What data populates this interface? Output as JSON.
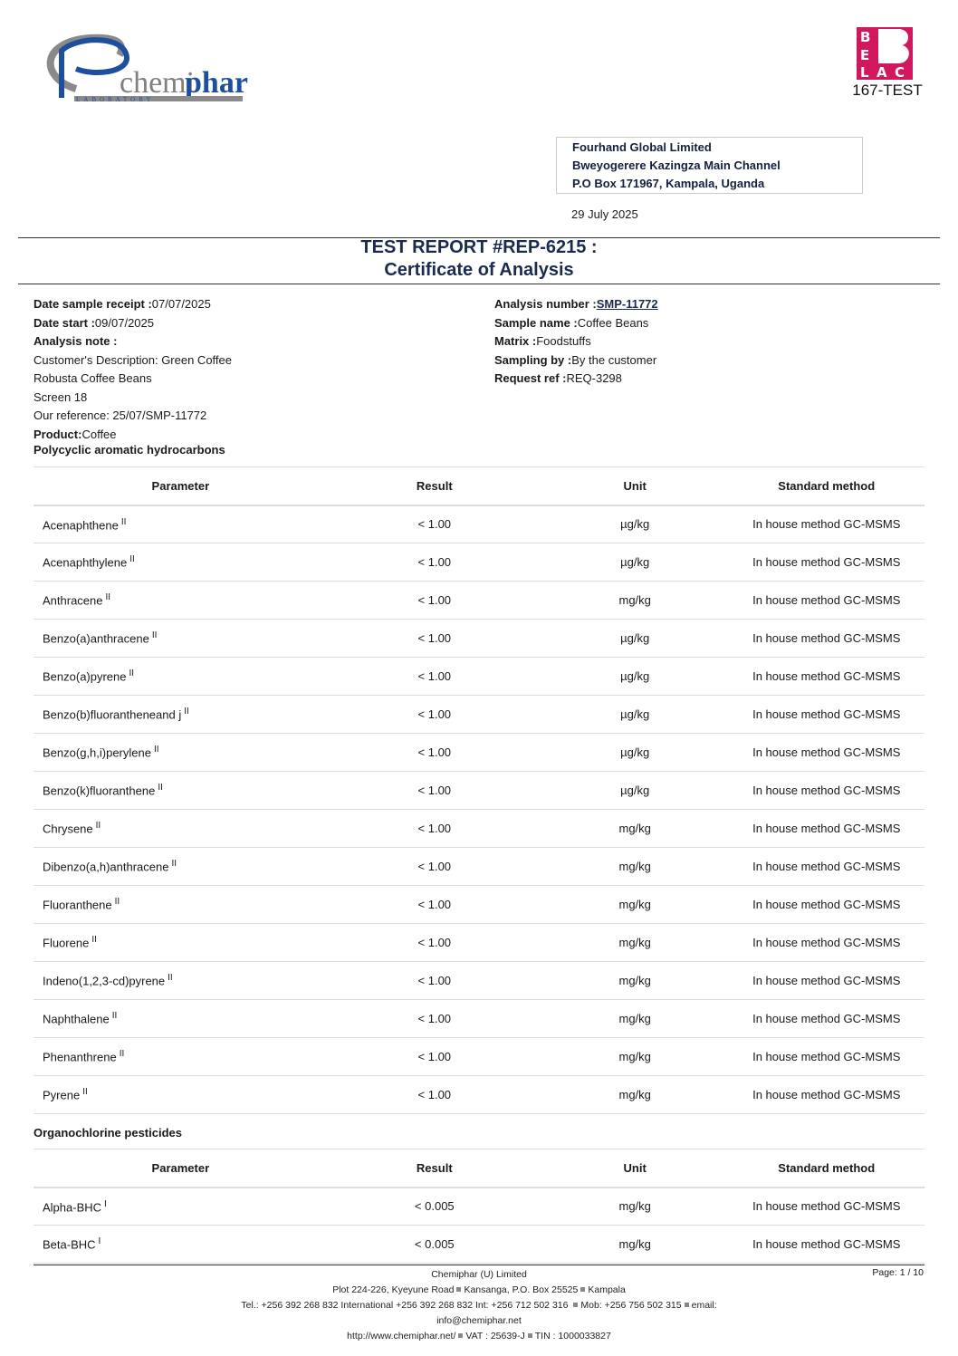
{
  "logo": {
    "text": "chemiphar",
    "sub": "LABORATORY"
  },
  "belac": {
    "letters": "BELAC",
    "code": "167-TEST",
    "color": "#d1175e"
  },
  "recipient": {
    "line1": "Fourhand Global Limited",
    "line2": "Bweyogerere Kazingza Main Channel",
    "line3": "P.O Box 171967, Kampala, Uganda"
  },
  "date": "29 July 2025",
  "title": {
    "line1": "TEST REPORT #REP-6215 :",
    "line2": "Certificate of Analysis"
  },
  "left": {
    "receipt_label": "Date sample receipt :",
    "receipt": "07/07/2025",
    "start_label": "Date start :",
    "start": "09/07/2025",
    "note_label": "Analysis note :",
    "note1": "Customer's Description: Green Coffee",
    "note2": "Robusta Coffee Beans",
    "note3": "Screen 18",
    "note4": "Our reference: 25/07/SMP-11772",
    "product_label": "Product:",
    "product": "Coffee"
  },
  "right": {
    "analysis_label": "Analysis number :",
    "analysis": "SMP-11772",
    "sample_label": "Sample name :",
    "sample": "Coffee Beans",
    "matrix_label": "Matrix :",
    "matrix": "Foodstuffs",
    "sampling_label": "Sampling by :",
    "sampling": "By the customer",
    "request_label": "Request ref :",
    "request": "REQ-3298"
  },
  "headers": [
    "Parameter",
    "Result",
    "Unit",
    "Standard method"
  ],
  "sections": [
    {
      "title": "Polycyclic aromatic hydrocarbons",
      "rows": [
        [
          "Acenaphthene",
          "II",
          "< 1.00",
          "µg/kg",
          "In house method GC-MSMS"
        ],
        [
          "Acenaphthylene",
          "II",
          "< 1.00",
          "µg/kg",
          "In house method GC-MSMS"
        ],
        [
          "Anthracene",
          "II",
          "< 1.00",
          "mg/kg",
          "In house method GC-MSMS"
        ],
        [
          "Benzo(a)anthracene",
          "II",
          "< 1.00",
          "µg/kg",
          "In house method GC-MSMS"
        ],
        [
          "Benzo(a)pyrene",
          "II",
          "< 1.00",
          "µg/kg",
          "In house method GC-MSMS"
        ],
        [
          "Benzo(b)fluorantheneand j",
          "II",
          "< 1.00",
          "µg/kg",
          "In house method GC-MSMS"
        ],
        [
          "Benzo(g,h,i)perylene",
          "II",
          "< 1.00",
          "µg/kg",
          "In house method GC-MSMS"
        ],
        [
          "Benzo(k)fluoranthene",
          "II",
          "< 1.00",
          "µg/kg",
          "In house method GC-MSMS"
        ],
        [
          "Chrysene",
          "II",
          "< 1.00",
          "mg/kg",
          "In house method GC-MSMS"
        ],
        [
          "Dibenzo(a,h)anthracene",
          "II",
          "< 1.00",
          "mg/kg",
          "In house method GC-MSMS"
        ],
        [
          "Fluoranthene",
          "II",
          "< 1.00",
          "mg/kg",
          "In house method GC-MSMS"
        ],
        [
          "Fluorene",
          "II",
          "< 1.00",
          "mg/kg",
          "In house method GC-MSMS"
        ],
        [
          "Indeno(1,2,3-cd)pyrene",
          "II",
          "< 1.00",
          "mg/kg",
          "In house method GC-MSMS"
        ],
        [
          "Naphthalene",
          "II",
          "< 1.00",
          "mg/kg",
          "In house method GC-MSMS"
        ],
        [
          "Phenanthrene",
          "II",
          "< 1.00",
          "mg/kg",
          "In house method GC-MSMS"
        ],
        [
          "Pyrene",
          "II",
          "< 1.00",
          "mg/kg",
          "In house method GC-MSMS"
        ]
      ]
    },
    {
      "title": "Organochlorine pesticides",
      "rows": [
        [
          "Alpha-BHC",
          "I",
          "< 0.005",
          "mg/kg",
          "In house method GC-MSMS"
        ],
        [
          "Beta-BHC",
          "I",
          "< 0.005",
          "mg/kg",
          "In house method GC-MSMS"
        ]
      ]
    }
  ],
  "footer": {
    "company": "Chemiphar (U) Limited",
    "addr1": "Plot 224-226, Kyeyune Road",
    "addr2": "Kansanga, P.O. Box 25525",
    "addr3": "Kampala",
    "tel": "Tel.: +256 392 268 832 International +256 392 268 832 Int: +256 712 502 316",
    "mob": "Mob: +256 756 502 315",
    "email_label": "email:",
    "email": "info@chemiphar.net",
    "web": "http://www.chemiphar.net/",
    "vat": "VAT : 25639-J",
    "tin": "TIN : 1000033827",
    "page": "Page: 1 / 10"
  }
}
